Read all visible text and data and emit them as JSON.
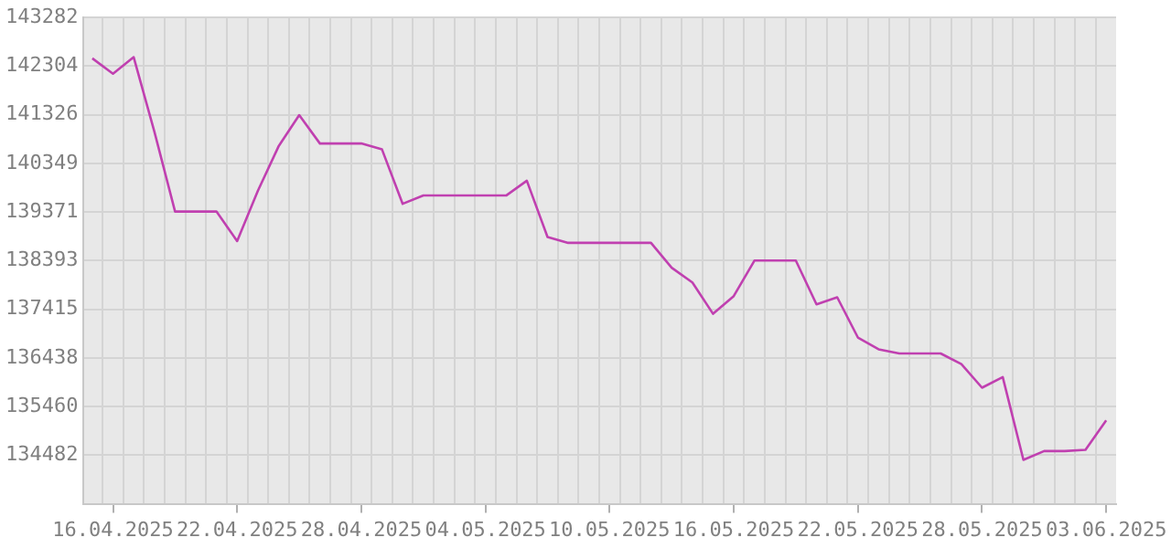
{
  "chart_data": {
    "type": "line",
    "x": [
      "2025-04-15",
      "2025-04-16",
      "2025-04-17",
      "2025-04-18",
      "2025-04-19",
      "2025-04-20",
      "2025-04-21",
      "2025-04-22",
      "2025-04-23",
      "2025-04-24",
      "2025-04-25",
      "2025-04-26",
      "2025-04-27",
      "2025-04-28",
      "2025-04-29",
      "2025-04-30",
      "2025-05-01",
      "2025-05-02",
      "2025-05-03",
      "2025-05-04",
      "2025-05-05",
      "2025-05-06",
      "2025-05-07",
      "2025-05-08",
      "2025-05-09",
      "2025-05-10",
      "2025-05-11",
      "2025-05-12",
      "2025-05-13",
      "2025-05-14",
      "2025-05-15",
      "2025-05-16",
      "2025-05-17",
      "2025-05-18",
      "2025-05-19",
      "2025-05-20",
      "2025-05-21",
      "2025-05-22",
      "2025-05-23",
      "2025-05-24",
      "2025-05-25",
      "2025-05-26",
      "2025-05-27",
      "2025-05-28",
      "2025-05-29",
      "2025-05-30",
      "2025-05-31",
      "2025-06-01",
      "2025-06-02",
      "2025-06-03"
    ],
    "values": [
      142462,
      142152,
      142485,
      140987,
      139381,
      139381,
      139381,
      138787,
      139797,
      140690,
      141320,
      140749,
      140749,
      140749,
      140630,
      139536,
      139703,
      139703,
      139703,
      139703,
      139703,
      140000,
      138870,
      138751,
      138751,
      138751,
      138751,
      138751,
      138252,
      137954,
      137324,
      137681,
      138395,
      138395,
      138395,
      137514,
      137657,
      136848,
      136611,
      136527,
      136527,
      136527,
      136313,
      135838,
      136052,
      134387,
      134565,
      134565,
      134589,
      135183
    ],
    "color": "#c040b0",
    "marker": "none",
    "line_style": "solid",
    "grid": true,
    "legend": false,
    "ylim": [
      133504,
      143282
    ],
    "yticks": [
      134482,
      135460,
      136438,
      137415,
      138393,
      139371,
      140349,
      141326,
      142304,
      143282
    ],
    "xlim": [
      "2025-04-14T14:00",
      "2025-06-03T11:30"
    ],
    "xticks": [
      {
        "value": "2025-04-16",
        "label": "16.04.2025"
      },
      {
        "value": "2025-04-22",
        "label": "22.04.2025"
      },
      {
        "value": "2025-04-28",
        "label": "28.04.2025"
      },
      {
        "value": "2025-05-04",
        "label": "04.05.2025"
      },
      {
        "value": "2025-05-10",
        "label": "10.05.2025"
      },
      {
        "value": "2025-05-16",
        "label": "16.05.2025"
      },
      {
        "value": "2025-05-22",
        "label": "22.05.2025"
      },
      {
        "value": "2025-05-28",
        "label": "28.05.2025"
      },
      {
        "value": "2025-06-03",
        "label": "03.06.2025"
      },
      {
        "value": "2025-04-15T12:00",
        "label": null
      },
      {
        "value": "2025-04-16T12:00",
        "label": null
      },
      {
        "value": "2025-04-17T12:00",
        "label": null
      },
      {
        "value": "2025-04-18T12:00",
        "label": null
      },
      {
        "value": "2025-04-19T12:00",
        "label": null
      },
      {
        "value": "2025-04-20T12:00",
        "label": null
      },
      {
        "value": "2025-04-21T12:00",
        "label": null
      },
      {
        "value": "2025-04-22T12:00",
        "label": null
      },
      {
        "value": "2025-04-23T12:00",
        "label": null
      },
      {
        "value": "2025-04-24T12:00",
        "label": null
      },
      {
        "value": "2025-04-25T12:00",
        "label": null
      },
      {
        "value": "2025-04-26T12:00",
        "label": null
      },
      {
        "value": "2025-04-27T12:00",
        "label": null
      },
      {
        "value": "2025-04-28T12:00",
        "label": null
      },
      {
        "value": "2025-04-29T12:00",
        "label": null
      },
      {
        "value": "2025-04-30T12:00",
        "label": null
      },
      {
        "value": "2025-05-01T12:00",
        "label": null
      },
      {
        "value": "2025-05-02T12:00",
        "label": null
      },
      {
        "value": "2025-05-03T12:00",
        "label": null
      },
      {
        "value": "2025-05-04T12:00",
        "label": null
      },
      {
        "value": "2025-05-05T12:00",
        "label": null
      },
      {
        "value": "2025-05-06T12:00",
        "label": null
      },
      {
        "value": "2025-05-07T12:00",
        "label": null
      },
      {
        "value": "2025-05-08T12:00",
        "label": null
      },
      {
        "value": "2025-05-09T12:00",
        "label": null
      },
      {
        "value": "2025-05-10T12:00",
        "label": null
      },
      {
        "value": "2025-05-11T12:00",
        "label": null
      },
      {
        "value": "2025-05-12T12:00",
        "label": null
      },
      {
        "value": "2025-05-13T12:00",
        "label": null
      },
      {
        "value": "2025-05-14T12:00",
        "label": null
      },
      {
        "value": "2025-05-15T12:00",
        "label": null
      },
      {
        "value": "2025-05-16T12:00",
        "label": null
      },
      {
        "value": "2025-05-17T12:00",
        "label": null
      },
      {
        "value": "2025-05-18T12:00",
        "label": null
      },
      {
        "value": "2025-05-19T12:00",
        "label": null
      },
      {
        "value": "2025-05-20T12:00",
        "label": null
      },
      {
        "value": "2025-05-21T12:00",
        "label": null
      },
      {
        "value": "2025-05-22T12:00",
        "label": null
      },
      {
        "value": "2025-05-23T12:00",
        "label": null
      },
      {
        "value": "2025-05-24T12:00",
        "label": null
      },
      {
        "value": "2025-05-25T12:00",
        "label": null
      },
      {
        "value": "2025-05-26T12:00",
        "label": null
      },
      {
        "value": "2025-05-27T12:00",
        "label": null
      },
      {
        "value": "2025-05-28T12:00",
        "label": null
      },
      {
        "value": "2025-05-29T12:00",
        "label": null
      },
      {
        "value": "2025-05-30T12:00",
        "label": null
      },
      {
        "value": "2025-05-31T12:00",
        "label": null
      },
      {
        "value": "2025-06-01T12:00",
        "label": null
      },
      {
        "value": "2025-06-02T12:00",
        "label": null
      }
    ]
  }
}
